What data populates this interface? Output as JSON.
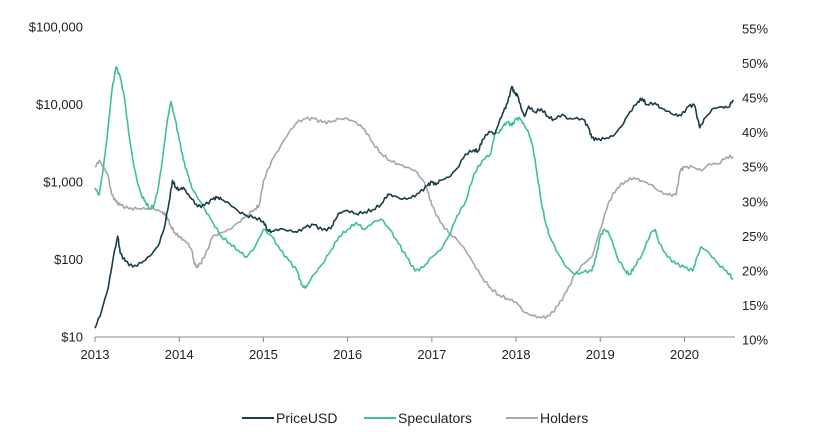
{
  "chart_data": {
    "type": "line",
    "x_ticks": [
      "2013",
      "2014",
      "2015",
      "2016",
      "2017",
      "2018",
      "2019",
      "2020"
    ],
    "xlim": [
      2013.0,
      2020.6
    ],
    "y_left": {
      "scale": "log",
      "lim": [
        10,
        100000
      ],
      "ticks": [
        10,
        100,
        1000,
        10000,
        100000
      ],
      "tick_labels": [
        "$10",
        "$100",
        "$1,000",
        "$10,000",
        "$100,000"
      ]
    },
    "y_right": {
      "scale": "linear",
      "lim": [
        10,
        55
      ],
      "ticks": [
        10,
        15,
        20,
        25,
        30,
        35,
        40,
        45,
        50,
        55
      ],
      "tick_labels": [
        "10%",
        "15%",
        "20%",
        "25%",
        "30%",
        "35%",
        "40%",
        "45%",
        "50%",
        "55%"
      ]
    },
    "legend_position": "bottom-center",
    "grid": false,
    "series": [
      {
        "name": "PriceUSD",
        "axis": "left",
        "color": "#1b3d4a",
        "points": [
          [
            2013.0,
            13
          ],
          [
            2013.08,
            22
          ],
          [
            2013.16,
            45
          ],
          [
            2013.22,
            110
          ],
          [
            2013.27,
            200
          ],
          [
            2013.3,
            120
          ],
          [
            2013.36,
            95
          ],
          [
            2013.45,
            80
          ],
          [
            2013.55,
            90
          ],
          [
            2013.65,
            110
          ],
          [
            2013.75,
            150
          ],
          [
            2013.82,
            250
          ],
          [
            2013.88,
            550
          ],
          [
            2013.92,
            1050
          ],
          [
            2013.96,
            850
          ],
          [
            2014.0,
            800
          ],
          [
            2014.05,
            850
          ],
          [
            2014.1,
            700
          ],
          [
            2014.15,
            600
          ],
          [
            2014.22,
            480
          ],
          [
            2014.3,
            500
          ],
          [
            2014.4,
            600
          ],
          [
            2014.45,
            630
          ],
          [
            2014.5,
            600
          ],
          [
            2014.6,
            520
          ],
          [
            2014.7,
            420
          ],
          [
            2014.8,
            370
          ],
          [
            2014.9,
            350
          ],
          [
            2015.0,
            310
          ],
          [
            2015.05,
            240
          ],
          [
            2015.1,
            230
          ],
          [
            2015.2,
            250
          ],
          [
            2015.3,
            235
          ],
          [
            2015.4,
            225
          ],
          [
            2015.5,
            260
          ],
          [
            2015.6,
            280
          ],
          [
            2015.7,
            240
          ],
          [
            2015.8,
            250
          ],
          [
            2015.85,
            320
          ],
          [
            2015.9,
            400
          ],
          [
            2016.0,
            430
          ],
          [
            2016.1,
            390
          ],
          [
            2016.2,
            410
          ],
          [
            2016.3,
            440
          ],
          [
            2016.4,
            520
          ],
          [
            2016.48,
            700
          ],
          [
            2016.55,
            660
          ],
          [
            2016.65,
            600
          ],
          [
            2016.75,
            620
          ],
          [
            2016.85,
            720
          ],
          [
            2016.95,
            900
          ],
          [
            2017.0,
            1000
          ],
          [
            2017.05,
            920
          ],
          [
            2017.1,
            1050
          ],
          [
            2017.2,
            1150
          ],
          [
            2017.3,
            1500
          ],
          [
            2017.4,
            2300
          ],
          [
            2017.5,
            2600
          ],
          [
            2017.55,
            2500
          ],
          [
            2017.6,
            3500
          ],
          [
            2017.68,
            4500
          ],
          [
            2017.75,
            4200
          ],
          [
            2017.8,
            6000
          ],
          [
            2017.85,
            8000
          ],
          [
            2017.9,
            10500
          ],
          [
            2017.95,
            17000
          ],
          [
            2017.98,
            14000
          ],
          [
            2018.02,
            13000
          ],
          [
            2018.06,
            9000
          ],
          [
            2018.1,
            7000
          ],
          [
            2018.15,
            9500
          ],
          [
            2018.22,
            8000
          ],
          [
            2018.3,
            8800
          ],
          [
            2018.38,
            7000
          ],
          [
            2018.45,
            6400
          ],
          [
            2018.55,
            7500
          ],
          [
            2018.62,
            6500
          ],
          [
            2018.7,
            6600
          ],
          [
            2018.8,
            6400
          ],
          [
            2018.86,
            5000
          ],
          [
            2018.9,
            3700
          ],
          [
            2018.96,
            3500
          ],
          [
            2019.05,
            3600
          ],
          [
            2019.15,
            3900
          ],
          [
            2019.25,
            5200
          ],
          [
            2019.35,
            8000
          ],
          [
            2019.45,
            11000
          ],
          [
            2019.5,
            12000
          ],
          [
            2019.55,
            10000
          ],
          [
            2019.65,
            10500
          ],
          [
            2019.72,
            9000
          ],
          [
            2019.8,
            8200
          ],
          [
            2019.88,
            7300
          ],
          [
            2019.96,
            7200
          ],
          [
            2020.05,
            9500
          ],
          [
            2020.12,
            9800
          ],
          [
            2020.18,
            5000
          ],
          [
            2020.25,
            6800
          ],
          [
            2020.35,
            9000
          ],
          [
            2020.45,
            9300
          ],
          [
            2020.52,
            9200
          ],
          [
            2020.58,
            11500
          ]
        ]
      },
      {
        "name": "Speculators",
        "axis": "right",
        "color": "#3dbf99",
        "points": [
          [
            2013.0,
            32
          ],
          [
            2013.05,
            31
          ],
          [
            2013.1,
            35
          ],
          [
            2013.15,
            40
          ],
          [
            2013.2,
            46
          ],
          [
            2013.25,
            49.5
          ],
          [
            2013.3,
            48
          ],
          [
            2013.35,
            45
          ],
          [
            2013.4,
            40
          ],
          [
            2013.45,
            36
          ],
          [
            2013.5,
            33
          ],
          [
            2013.55,
            31
          ],
          [
            2013.6,
            30
          ],
          [
            2013.65,
            29
          ],
          [
            2013.7,
            29.5
          ],
          [
            2013.75,
            32
          ],
          [
            2013.8,
            36
          ],
          [
            2013.85,
            41
          ],
          [
            2013.9,
            44.5
          ],
          [
            2013.95,
            42
          ],
          [
            2014.0,
            39
          ],
          [
            2014.05,
            36
          ],
          [
            2014.1,
            34
          ],
          [
            2014.15,
            32
          ],
          [
            2014.2,
            31
          ],
          [
            2014.3,
            29
          ],
          [
            2014.4,
            27
          ],
          [
            2014.5,
            25
          ],
          [
            2014.6,
            24
          ],
          [
            2014.7,
            23
          ],
          [
            2014.8,
            22
          ],
          [
            2014.9,
            23.5
          ],
          [
            2015.0,
            26
          ],
          [
            2015.1,
            25
          ],
          [
            2015.2,
            23
          ],
          [
            2015.3,
            21.5
          ],
          [
            2015.4,
            20
          ],
          [
            2015.45,
            18
          ],
          [
            2015.5,
            17.5
          ],
          [
            2015.6,
            19.5
          ],
          [
            2015.7,
            21
          ],
          [
            2015.8,
            23
          ],
          [
            2015.9,
            25
          ],
          [
            2016.0,
            26
          ],
          [
            2016.1,
            27
          ],
          [
            2016.2,
            26
          ],
          [
            2016.3,
            27
          ],
          [
            2016.4,
            27.5
          ],
          [
            2016.5,
            26
          ],
          [
            2016.6,
            24
          ],
          [
            2016.7,
            22
          ],
          [
            2016.8,
            20
          ],
          [
            2016.9,
            20.5
          ],
          [
            2017.0,
            22
          ],
          [
            2017.1,
            23
          ],
          [
            2017.2,
            25
          ],
          [
            2017.3,
            28
          ],
          [
            2017.4,
            30
          ],
          [
            2017.5,
            34
          ],
          [
            2017.6,
            36
          ],
          [
            2017.7,
            37
          ],
          [
            2017.75,
            40
          ],
          [
            2017.8,
            40
          ],
          [
            2017.85,
            41
          ],
          [
            2017.9,
            41.5
          ],
          [
            2017.95,
            41
          ],
          [
            2018.0,
            42
          ],
          [
            2018.05,
            42
          ],
          [
            2018.1,
            41
          ],
          [
            2018.15,
            40
          ],
          [
            2018.2,
            38
          ],
          [
            2018.25,
            34
          ],
          [
            2018.3,
            30
          ],
          [
            2018.35,
            27
          ],
          [
            2018.4,
            25
          ],
          [
            2018.5,
            22.5
          ],
          [
            2018.6,
            20.5
          ],
          [
            2018.7,
            19.5
          ],
          [
            2018.8,
            19.8
          ],
          [
            2018.9,
            20
          ],
          [
            2018.95,
            22
          ],
          [
            2019.0,
            25
          ],
          [
            2019.05,
            26
          ],
          [
            2019.1,
            25.5
          ],
          [
            2019.15,
            24
          ],
          [
            2019.2,
            22
          ],
          [
            2019.3,
            20
          ],
          [
            2019.35,
            19.5
          ],
          [
            2019.4,
            20.5
          ],
          [
            2019.5,
            22.5
          ],
          [
            2019.6,
            25.5
          ],
          [
            2019.65,
            26
          ],
          [
            2019.7,
            24
          ],
          [
            2019.8,
            22
          ],
          [
            2019.9,
            21
          ],
          [
            2020.0,
            20.5
          ],
          [
            2020.1,
            20
          ],
          [
            2020.15,
            22
          ],
          [
            2020.2,
            23.5
          ],
          [
            2020.3,
            22.5
          ],
          [
            2020.4,
            21
          ],
          [
            2020.5,
            20
          ],
          [
            2020.58,
            18.8
          ]
        ]
      },
      {
        "name": "Holders",
        "axis": "right",
        "color": "#a6a6a6",
        "points": [
          [
            2013.0,
            35
          ],
          [
            2013.05,
            36
          ],
          [
            2013.1,
            35
          ],
          [
            2013.15,
            34
          ],
          [
            2013.2,
            31
          ],
          [
            2013.25,
            30
          ],
          [
            2013.3,
            29.5
          ],
          [
            2013.4,
            29
          ],
          [
            2013.5,
            29
          ],
          [
            2013.6,
            29
          ],
          [
            2013.7,
            29
          ],
          [
            2013.8,
            28.5
          ],
          [
            2013.85,
            28
          ],
          [
            2013.9,
            26.5
          ],
          [
            2013.95,
            25.5
          ],
          [
            2014.0,
            25
          ],
          [
            2014.05,
            24.5
          ],
          [
            2014.1,
            24
          ],
          [
            2014.15,
            23
          ],
          [
            2014.18,
            21
          ],
          [
            2014.22,
            20.5
          ],
          [
            2014.3,
            22
          ],
          [
            2014.4,
            25
          ],
          [
            2014.5,
            25.5
          ],
          [
            2014.6,
            26
          ],
          [
            2014.7,
            27
          ],
          [
            2014.8,
            28
          ],
          [
            2014.9,
            29
          ],
          [
            2014.95,
            29.5
          ],
          [
            2015.0,
            33
          ],
          [
            2015.1,
            36
          ],
          [
            2015.2,
            38
          ],
          [
            2015.3,
            40
          ],
          [
            2015.4,
            41.5
          ],
          [
            2015.5,
            42
          ],
          [
            2015.6,
            42
          ],
          [
            2015.7,
            41.5
          ],
          [
            2015.8,
            41.5
          ],
          [
            2015.9,
            42
          ],
          [
            2016.0,
            42
          ],
          [
            2016.1,
            41.5
          ],
          [
            2016.2,
            40.5
          ],
          [
            2016.3,
            38.5
          ],
          [
            2016.4,
            37
          ],
          [
            2016.5,
            36
          ],
          [
            2016.6,
            35.5
          ],
          [
            2016.7,
            35
          ],
          [
            2016.8,
            34.5
          ],
          [
            2016.9,
            33
          ],
          [
            2016.95,
            31.5
          ],
          [
            2017.0,
            29.5
          ],
          [
            2017.1,
            27
          ],
          [
            2017.2,
            25.5
          ],
          [
            2017.3,
            24.5
          ],
          [
            2017.4,
            23
          ],
          [
            2017.5,
            21
          ],
          [
            2017.6,
            19
          ],
          [
            2017.7,
            17.5
          ],
          [
            2017.8,
            16.5
          ],
          [
            2017.9,
            16
          ],
          [
            2018.0,
            15.5
          ],
          [
            2018.1,
            14
          ],
          [
            2018.2,
            13.5
          ],
          [
            2018.3,
            13.2
          ],
          [
            2018.4,
            13.5
          ],
          [
            2018.5,
            15
          ],
          [
            2018.6,
            17
          ],
          [
            2018.7,
            19.5
          ],
          [
            2018.8,
            21
          ],
          [
            2018.9,
            22
          ],
          [
            2019.0,
            26
          ],
          [
            2019.1,
            30
          ],
          [
            2019.2,
            32
          ],
          [
            2019.3,
            33
          ],
          [
            2019.4,
            33.5
          ],
          [
            2019.5,
            33
          ],
          [
            2019.6,
            32.5
          ],
          [
            2019.7,
            31.5
          ],
          [
            2019.8,
            31
          ],
          [
            2019.9,
            31
          ],
          [
            2019.95,
            34.5
          ],
          [
            2020.0,
            35
          ],
          [
            2020.1,
            35
          ],
          [
            2020.2,
            34.5
          ],
          [
            2020.3,
            35.5
          ],
          [
            2020.4,
            35.5
          ],
          [
            2020.5,
            36.5
          ],
          [
            2020.58,
            36.5
          ]
        ]
      }
    ]
  }
}
